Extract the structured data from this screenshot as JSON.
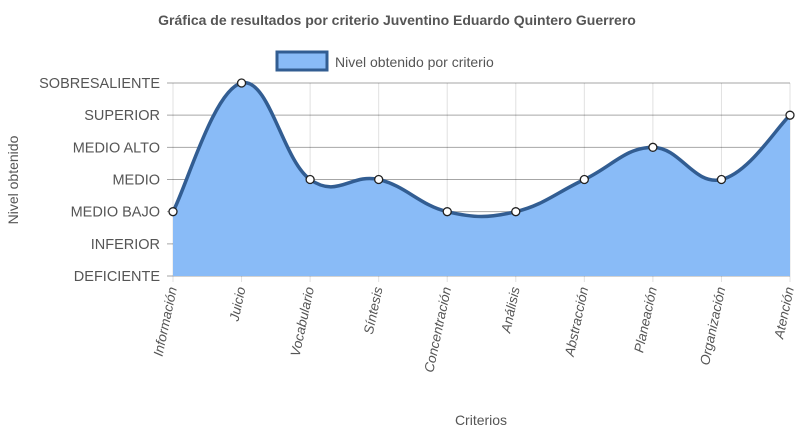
{
  "colors": {
    "fill": "#89BBF7",
    "line": "#325D92",
    "point_fill": "#ffffff",
    "point_stroke": "#222222",
    "text": "#555555"
  },
  "chart_data": {
    "type": "area",
    "title": "Gráfica de resultados por criterio Juventino Eduardo Quintero Guerrero",
    "xlabel": "Criterios",
    "ylabel": "Nivel obtenido",
    "y_levels": [
      "DEFICIENTE",
      "INFERIOR",
      "MEDIO BAJO",
      "MEDIO",
      "MEDIO ALTO",
      "SUPERIOR",
      "SOBRESALIENTE"
    ],
    "categories": [
      "Información",
      "Juicio",
      "Vocabulario",
      "Síntesis",
      "Concentración",
      "Análisis",
      "Abstracción",
      "Planeación",
      "Organización",
      "Atención"
    ],
    "series": [
      {
        "name": "Nivel obtenido por criterio",
        "values": [
          2,
          6,
          3,
          3,
          2,
          2,
          3,
          4,
          3,
          5
        ]
      }
    ],
    "ylim": [
      0,
      6
    ],
    "grid": true,
    "legend_position": "top"
  }
}
